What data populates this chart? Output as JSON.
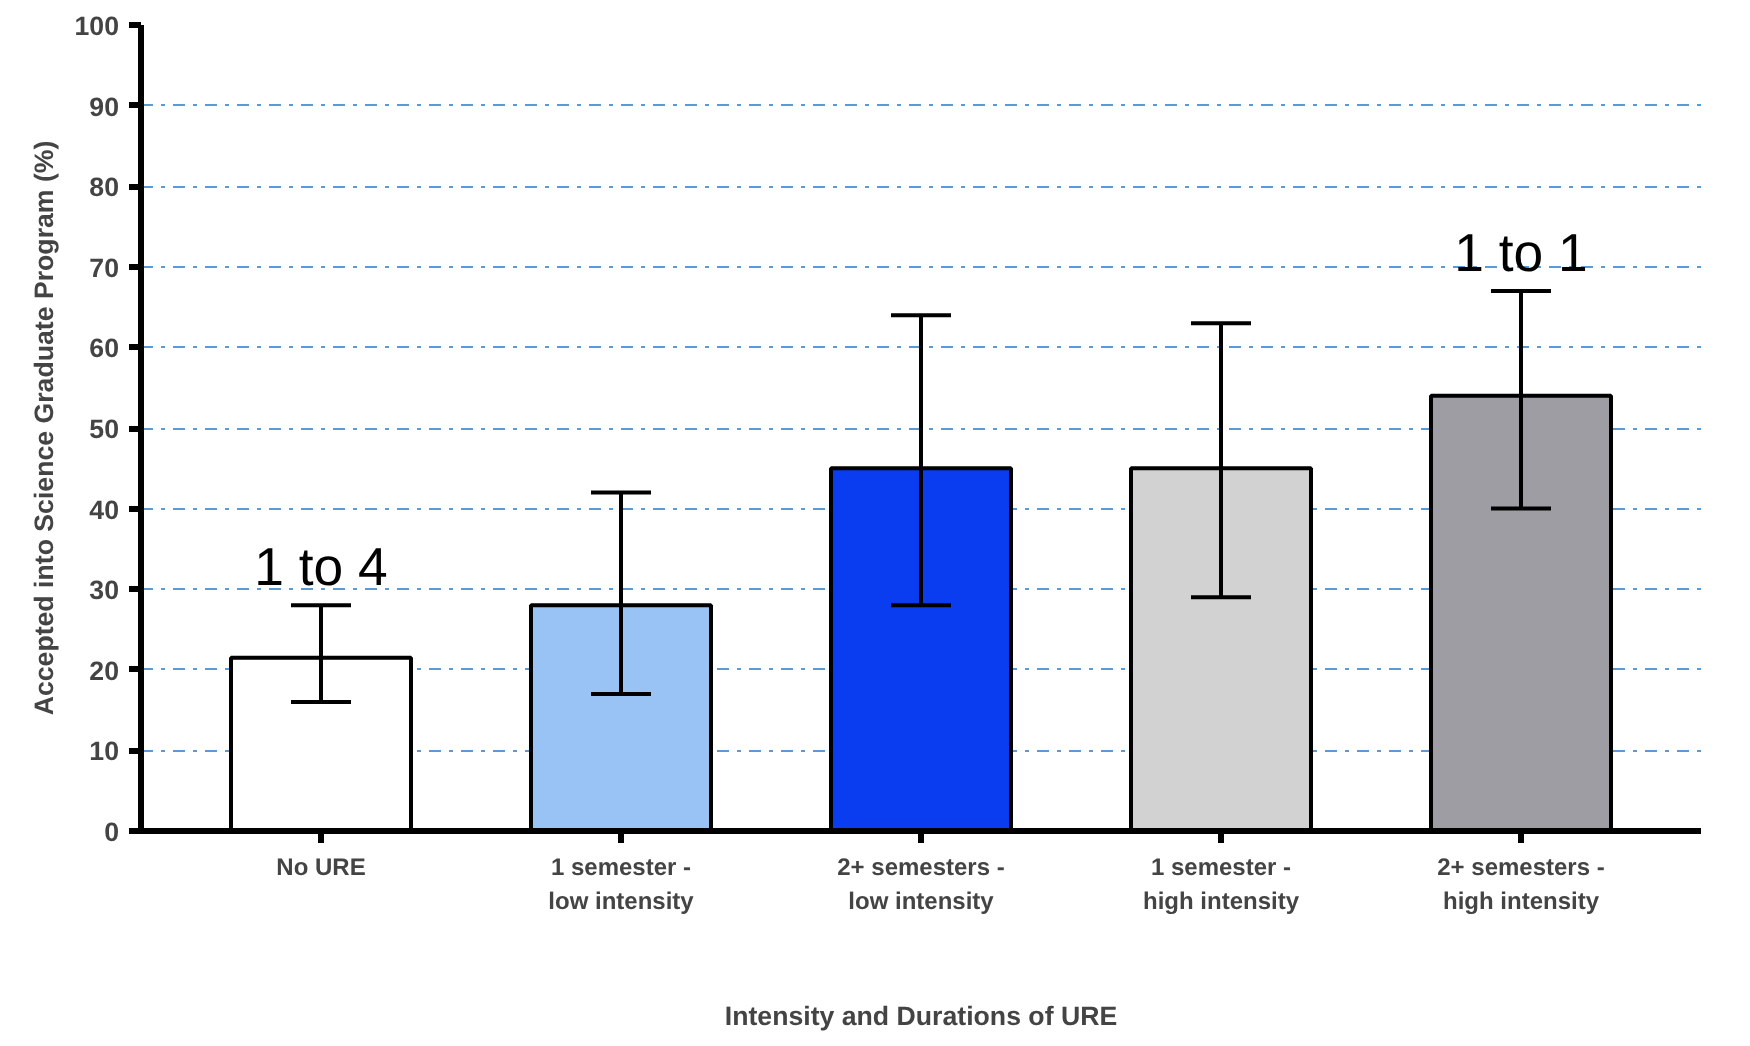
{
  "chart_data": {
    "type": "bar",
    "xlabel": "Intensity and Durations of URE",
    "ylabel": "Accepted into Science Graduate Program (%)",
    "categories": [
      "No URE",
      "1 semester -\nlow intensity",
      "2+ semesters -\nlow intensity",
      "1 semester -\nhigh intensity",
      "2+ semesters -\nhigh intensity"
    ],
    "values": [
      21.5,
      28,
      45,
      45,
      54
    ],
    "colors": [
      "#ffffff",
      "#99c2f5",
      "#0a3cf0",
      "#d2d2d2",
      "#9e9da4"
    ],
    "errors": [
      [
        16,
        28
      ],
      [
        17,
        42
      ],
      [
        28,
        64
      ],
      [
        29,
        63
      ],
      [
        40,
        67
      ]
    ],
    "ylim": [
      0,
      100
    ],
    "yticks": [
      0,
      10,
      20,
      30,
      40,
      50,
      60,
      70,
      80,
      90,
      100
    ],
    "grid": "y",
    "annotations": [
      "1 to 4",
      "1 to 1"
    ]
  }
}
